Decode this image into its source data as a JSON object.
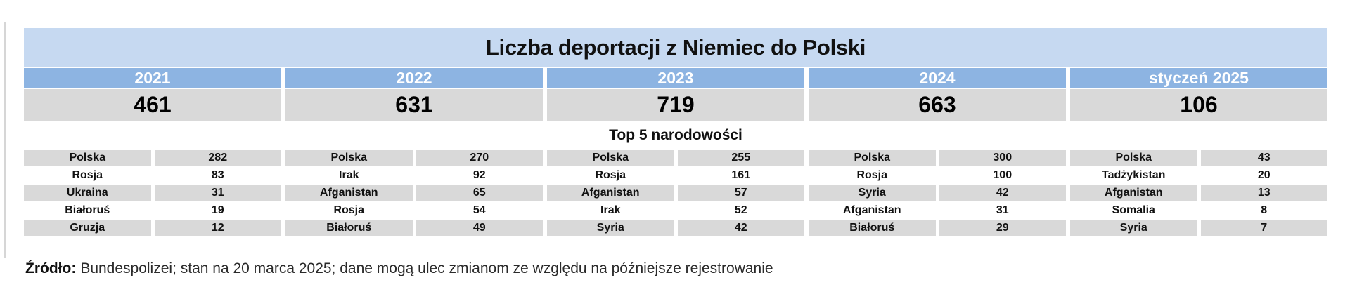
{
  "title": "Liczba deportacji z Niemiec do Polski",
  "top5_heading": "Top 5 narodowości",
  "source": {
    "label": "Źródło:",
    "text": "Bundespolizei; stan na 20 marca 2025; dane mogą ulec zmianom ze względu na późniejsze rejestrowanie"
  },
  "colors": {
    "title_bar_bg": "#c6d9f1",
    "year_header_bg": "#8db4e2",
    "year_header_text": "#ffffff",
    "cell_gray": "#d9d9d9",
    "text": "#111111"
  },
  "chart_data": {
    "type": "table",
    "title": "Liczba deportacji z Niemiec do Polski",
    "subtitle": "Top 5 narodowości",
    "columns": [
      {
        "period": "2021",
        "total": 461,
        "top5": [
          {
            "country": "Polska",
            "value": 282
          },
          {
            "country": "Rosja",
            "value": 83
          },
          {
            "country": "Ukraina",
            "value": 31
          },
          {
            "country": "Białoruś",
            "value": 19
          },
          {
            "country": "Gruzja",
            "value": 12
          }
        ]
      },
      {
        "period": "2022",
        "total": 631,
        "top5": [
          {
            "country": "Polska",
            "value": 270
          },
          {
            "country": "Irak",
            "value": 92
          },
          {
            "country": "Afganistan",
            "value": 65
          },
          {
            "country": "Rosja",
            "value": 54
          },
          {
            "country": "Białoruś",
            "value": 49
          }
        ]
      },
      {
        "period": "2023",
        "total": 719,
        "top5": [
          {
            "country": "Polska",
            "value": 255
          },
          {
            "country": "Rosja",
            "value": 161
          },
          {
            "country": "Afganistan",
            "value": 57
          },
          {
            "country": "Irak",
            "value": 52
          },
          {
            "country": "Syria",
            "value": 42
          }
        ]
      },
      {
        "period": "2024",
        "total": 663,
        "top5": [
          {
            "country": "Polska",
            "value": 300
          },
          {
            "country": "Rosja",
            "value": 100
          },
          {
            "country": "Syria",
            "value": 42
          },
          {
            "country": "Afganistan",
            "value": 31
          },
          {
            "country": "Białoruś",
            "value": 29
          }
        ]
      },
      {
        "period": "styczeń 2025",
        "total": 106,
        "top5": [
          {
            "country": "Polska",
            "value": 43
          },
          {
            "country": "Tadżykistan",
            "value": 20
          },
          {
            "country": "Afganistan",
            "value": 13
          },
          {
            "country": "Somalia",
            "value": 8
          },
          {
            "country": "Syria",
            "value": 7
          }
        ]
      }
    ]
  }
}
